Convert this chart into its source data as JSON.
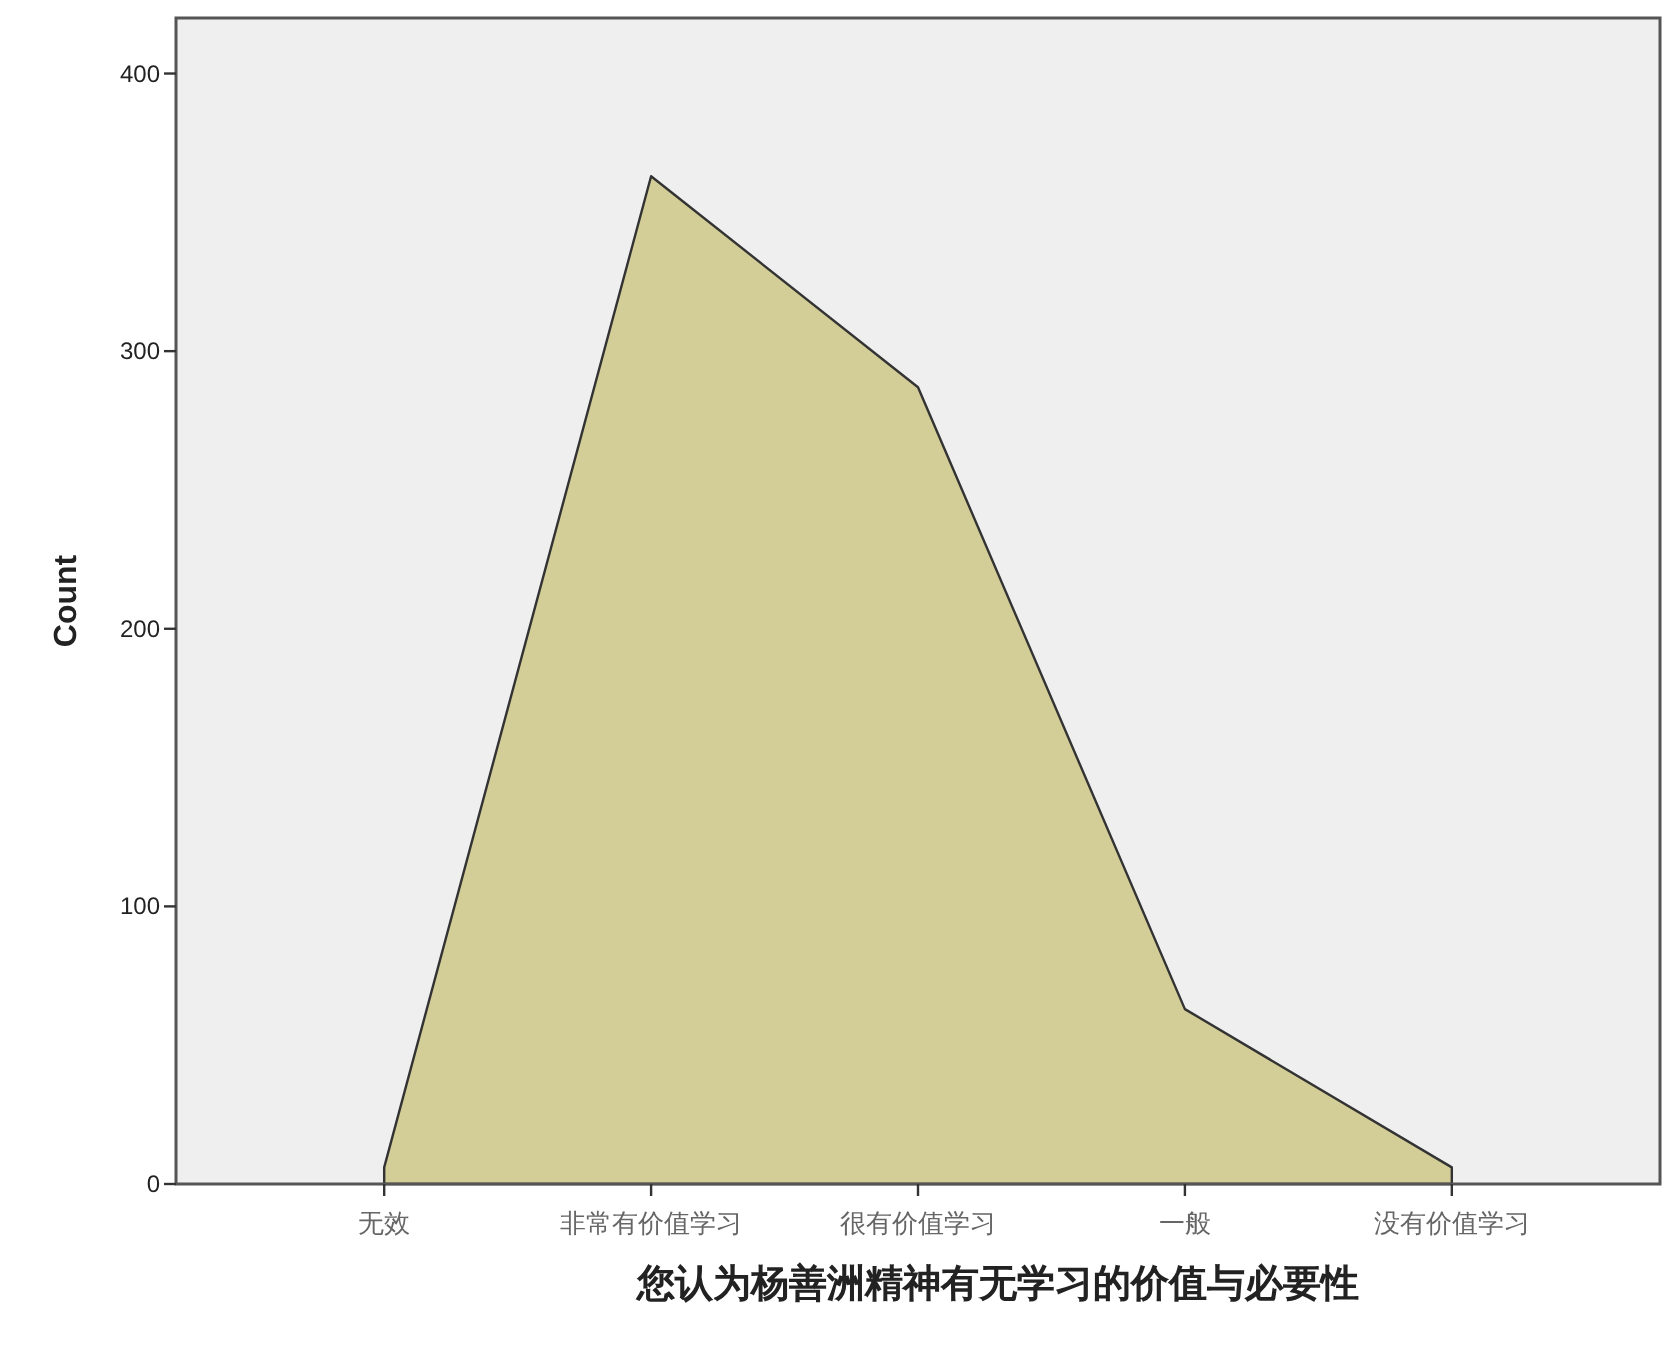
{
  "chart_data": {
    "type": "area",
    "xlabel": "您认为杨善洲精神有无学习的价值与必要性",
    "ylabel": "Count",
    "categories": [
      "无效",
      "非常有价值学习",
      "很有价值学习",
      "一般",
      "没有价值学习"
    ],
    "values": [
      6,
      363,
      287,
      63,
      6
    ],
    "color": "#d3cd97",
    "ylim": [
      0,
      420
    ],
    "yticks": [
      0,
      100,
      200,
      300,
      400
    ]
  }
}
